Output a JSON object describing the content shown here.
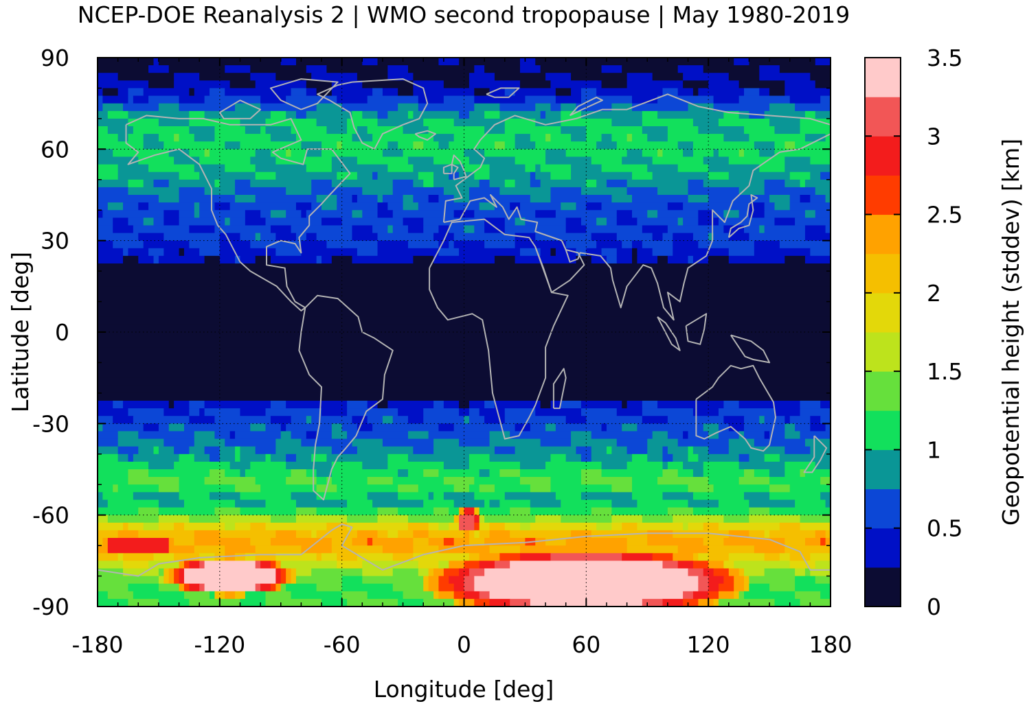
{
  "title": "NCEP-DOE Reanalysis 2 | WMO second tropopause | May 1980-2019",
  "chart_data": {
    "type": "heatmap",
    "title": "NCEP-DOE Reanalysis 2 | WMO second tropopause | May 1980-2019",
    "xlabel": "Longitude [deg]",
    "ylabel": "Latitude [deg]",
    "colorbar_label": "Geopotential height (stddev) [km]",
    "xlim": [
      -180,
      180
    ],
    "ylim": [
      -90,
      90
    ],
    "x_ticks": [
      "-180",
      "-120",
      "-60",
      "0",
      "60",
      "120",
      "180"
    ],
    "y_ticks": [
      "90",
      "60",
      "30",
      "0",
      "-30",
      "-60",
      "-90"
    ],
    "colorbar_ticks": [
      "0",
      "0.5",
      "1",
      "1.5",
      "2",
      "2.5",
      "3",
      "3.5"
    ],
    "colorbar_range": [
      0,
      3.5
    ],
    "colorbar_step": 0.25,
    "colorbar_colors": [
      "#0c0c33",
      "#0010c6",
      "#0c47d6",
      "#0a9696",
      "#12e05c",
      "#66e03c",
      "#bde31c",
      "#e3d80a",
      "#f5bf00",
      "#ffa200",
      "#ff3c00",
      "#f31c1c",
      "#f25656",
      "#ffcaca"
    ],
    "grid": "dotted at 60-degree longitude and 30-degree latitude intervals",
    "overlay": "coastlines (gray)",
    "zonal_profile": [
      {
        "lat": 90,
        "value": 0.1
      },
      {
        "lat": 80,
        "value": 0.3
      },
      {
        "lat": 75,
        "value": 0.6
      },
      {
        "lat": 70,
        "value": 1.0
      },
      {
        "lat": 60,
        "value": 1.1
      },
      {
        "lat": 50,
        "value": 0.9
      },
      {
        "lat": 45,
        "value": 0.7
      },
      {
        "lat": 40,
        "value": 0.6
      },
      {
        "lat": 30,
        "value": 0.55
      },
      {
        "lat": 25,
        "value": 0.4
      },
      {
        "lat": 20,
        "value": 0.1
      },
      {
        "lat": 0,
        "value": 0.05
      },
      {
        "lat": -20,
        "value": 0.1
      },
      {
        "lat": -25,
        "value": 0.5
      },
      {
        "lat": -30,
        "value": 0.6
      },
      {
        "lat": -35,
        "value": 0.7
      },
      {
        "lat": -40,
        "value": 0.85
      },
      {
        "lat": -45,
        "value": 1.1
      },
      {
        "lat": -50,
        "value": 1.3
      },
      {
        "lat": -55,
        "value": 0.9
      },
      {
        "lat": -60,
        "value": 1.3
      },
      {
        "lat": -65,
        "value": 2.1
      },
      {
        "lat": -70,
        "value": 2.4
      },
      {
        "lat": -75,
        "value": 1.8
      },
      {
        "lat": -80,
        "value": 1.4
      },
      {
        "lat": -85,
        "value": 1.2
      },
      {
        "lat": -90,
        "value": 1.3
      }
    ],
    "anomalies": [
      {
        "lon": 60,
        "lat": -82,
        "lon_halfwidth": 50,
        "lat_halfwidth": 7,
        "value": 3.5
      },
      {
        "lon": -115,
        "lat": -80,
        "lon_halfwidth": 20,
        "lat_halfwidth": 4,
        "value": 3.5
      },
      {
        "lon": -160,
        "lat": -70,
        "lon_halfwidth": 15,
        "lat_halfwidth": 3,
        "value": 2.8
      },
      {
        "lon": 2,
        "lat": -62,
        "lon_halfwidth": 4,
        "lat_halfwidth": 3,
        "value": 3.2
      }
    ]
  },
  "colors": {
    "coastline": "#b4b4b4",
    "grid": "#000000",
    "frame": "#000000"
  }
}
